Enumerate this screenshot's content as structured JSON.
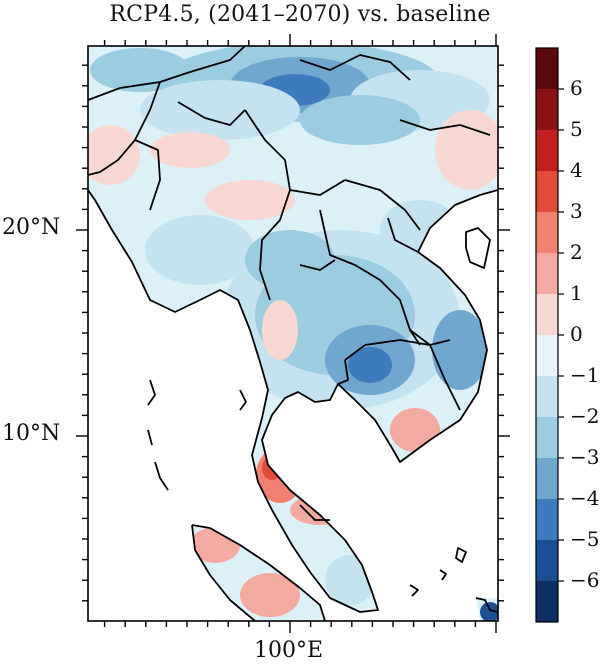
{
  "title": "RCP4.5, (2041–2070) vs. baseline",
  "axes": {
    "lat_labels": [
      {
        "text": "20°N",
        "lat": 20
      },
      {
        "text": "10°N",
        "lat": 10
      }
    ],
    "lon_labels": [
      {
        "text": "100°E",
        "lon": 100
      }
    ]
  },
  "colorbar": {
    "ticks": [
      "6",
      "5",
      "4",
      "3",
      "2",
      "1",
      "0",
      "−1",
      "−2",
      "−3",
      "−4",
      "−5",
      "−6"
    ],
    "colors": [
      "#5a0a0a",
      "#8a1414",
      "#c22020",
      "#e24a3a",
      "#f08070",
      "#f4aaa0",
      "#f9d8d4",
      "#e6f4fa",
      "#c4e2ef",
      "#9cccdf",
      "#6fa7cf",
      "#3e7bbd",
      "#1b4f94",
      "#0d2f63"
    ]
  },
  "colors": {
    "land_neutral": "#dcf0f7",
    "sea": "#ffffff",
    "border": "#000000"
  }
}
